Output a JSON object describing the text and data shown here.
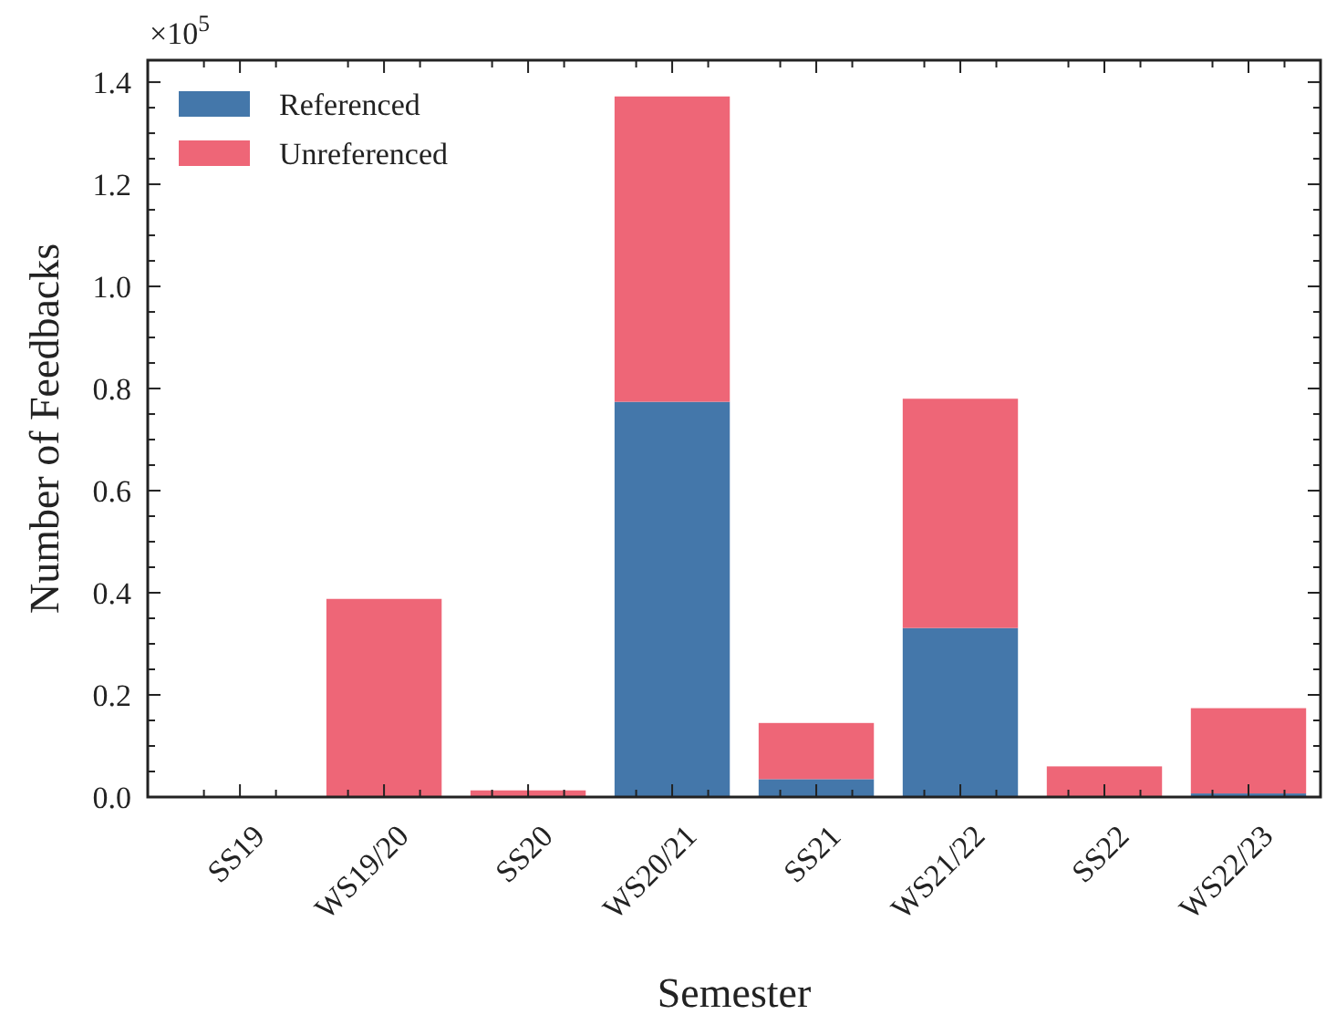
{
  "chart_data": {
    "type": "bar",
    "xlabel": "Semester",
    "ylabel": "Number of Feedbacks",
    "categories": [
      "SS19",
      "WS19/20",
      "SS20",
      "WS20/21",
      "SS21",
      "WS21/22",
      "SS22",
      "WS22/23"
    ],
    "stacked": true,
    "series": [
      {
        "name": "Referenced",
        "color": "#4477aa",
        "values": [
          0,
          0,
          0,
          0.774,
          0.035,
          0.331,
          0,
          0.007
        ]
      },
      {
        "name": "Unreferenced",
        "color": "#ee6677",
        "values": [
          0,
          0.388,
          0.013,
          0.598,
          0.11,
          0.449,
          0.06,
          0.167
        ]
      }
    ],
    "ylim": [
      0,
      1.443
    ],
    "yticks": [
      {
        "value": 0,
        "label": "0.0"
      },
      0.2,
      0.4,
      0.6,
      0.8,
      {
        "value": 1,
        "label": "1.0"
      },
      1.2,
      1.4
    ],
    "annotations": [
      "×10$^{5}$"
    ],
    "legend": "top left",
    "grid": false
  }
}
